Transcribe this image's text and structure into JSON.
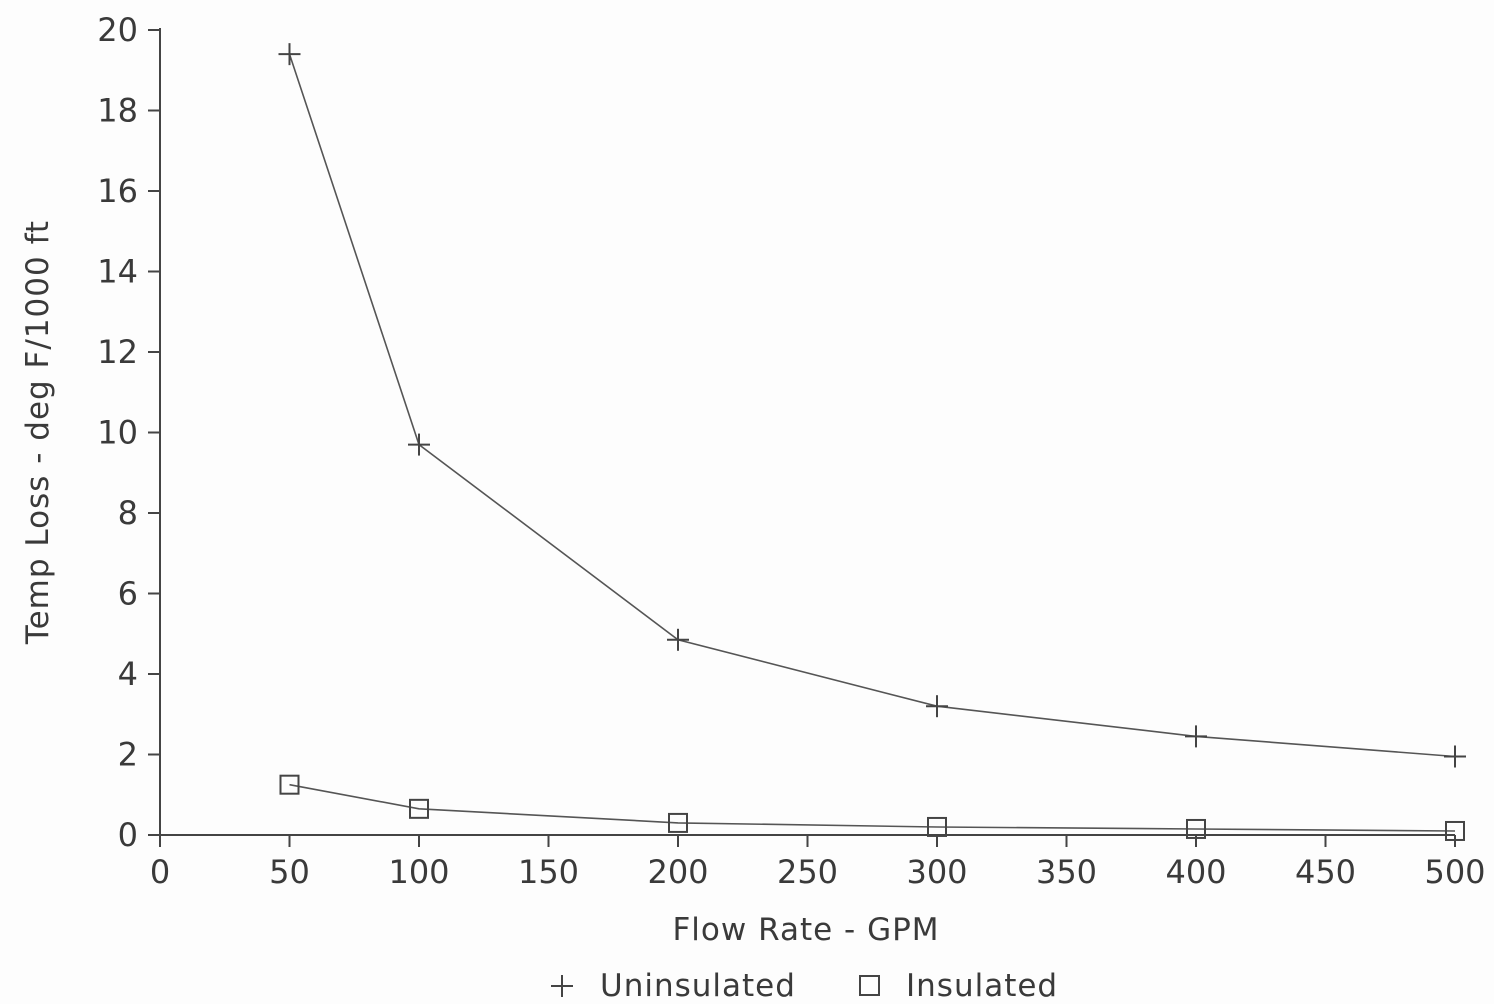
{
  "chart_data": {
    "type": "line",
    "title": "",
    "xlabel": "Flow Rate - GPM",
    "ylabel": "Temp Loss - deg F/1000 ft",
    "xlim": [
      0,
      500
    ],
    "ylim": [
      0,
      20
    ],
    "xticks": [
      "0",
      "50",
      "100",
      "150",
      "200",
      "250",
      "300",
      "350",
      "400",
      "450",
      "500"
    ],
    "yticks": [
      "0",
      "2",
      "4",
      "6",
      "8",
      "10",
      "12",
      "14",
      "16",
      "18",
      "20"
    ],
    "x": [
      50,
      100,
      200,
      300,
      400,
      500
    ],
    "series": [
      {
        "name": "Uninsulated",
        "marker": "plus",
        "values": [
          19.4,
          9.7,
          4.85,
          3.2,
          2.45,
          1.95
        ]
      },
      {
        "name": "Insulated",
        "marker": "square",
        "values": [
          1.25,
          0.65,
          0.3,
          0.2,
          0.15,
          0.1
        ]
      }
    ],
    "grid": false,
    "legend_position": "bottom-center",
    "colors": {
      "line": "#555555",
      "axis": "#444444",
      "text": "#3a3a3a"
    }
  }
}
